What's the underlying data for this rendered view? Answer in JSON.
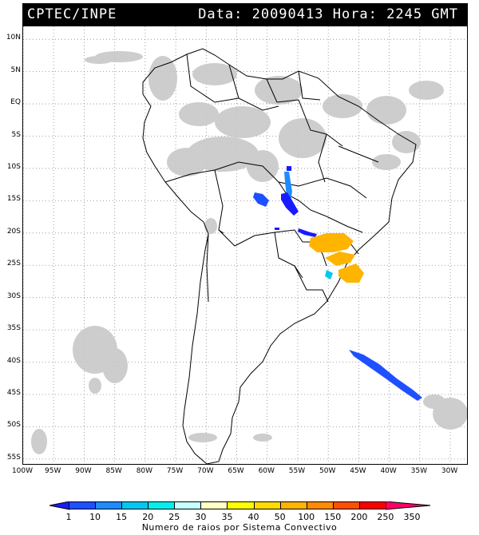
{
  "header": {
    "agency": "CPTEC/INPE",
    "datetime": "Data: 20090413 Hora: 2245 GMT"
  },
  "map": {
    "lat_labels": [
      "10N",
      "5N",
      "EQ",
      "5S",
      "10S",
      "15S",
      "20S",
      "25S",
      "30S",
      "35S",
      "40S",
      "45S",
      "50S",
      "55S"
    ],
    "lon_labels": [
      "100W",
      "95W",
      "90W",
      "85W",
      "80W",
      "75W",
      "70W",
      "65W",
      "60W",
      "55W",
      "50W",
      "45W",
      "40W",
      "35W",
      "30W"
    ],
    "extent": {
      "lon_min": -100,
      "lon_max": -27,
      "lat_max": 12,
      "lat_min": -56
    },
    "colors": {
      "cloud": "#c8c8c8",
      "land_border": "#000000",
      "grid": "#888888"
    }
  },
  "legend": {
    "ticks": [
      "1",
      "10",
      "15",
      "20",
      "25",
      "30",
      "35",
      "40",
      "50",
      "100",
      "150",
      "200",
      "250",
      "350"
    ],
    "colors": [
      "#1a1aff",
      "#1e50ff",
      "#1e8cff",
      "#00c8f0",
      "#00f0f0",
      "#c8ffff",
      "#ffffc8",
      "#ffff00",
      "#ffdc00",
      "#ffb400",
      "#ff8c00",
      "#ff5000",
      "#ff0000",
      "#ff0064"
    ],
    "caption": "Numero de raios por Sistema Convectivo"
  }
}
